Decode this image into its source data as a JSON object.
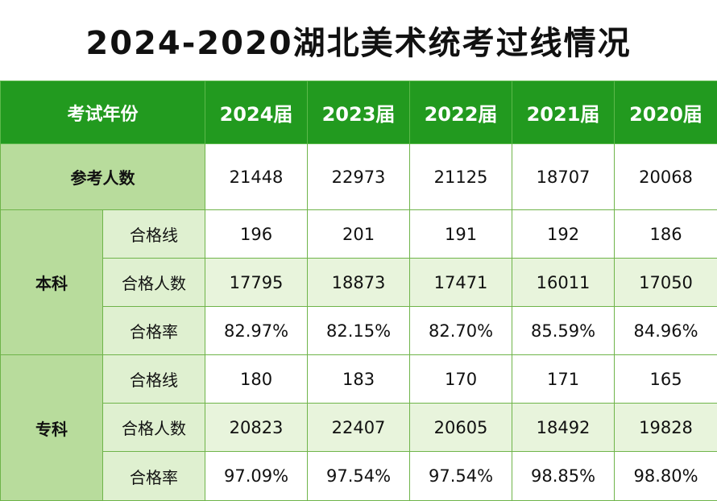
{
  "title": "2024-2020湖北美术统考过线情况",
  "table": {
    "header": {
      "label": "考试年份",
      "years": [
        "2024届",
        "2023届",
        "2022届",
        "2021届",
        "2020届"
      ]
    },
    "participants": {
      "label": "参考人数",
      "values": [
        "21448",
        "22973",
        "21125",
        "18707",
        "20068"
      ]
    },
    "sections": [
      {
        "label": "本科",
        "rows": [
          {
            "label": "合格线",
            "values": [
              "196",
              "201",
              "191",
              "192",
              "186"
            ]
          },
          {
            "label": "合格人数",
            "values": [
              "17795",
              "18873",
              "17471",
              "16011",
              "17050"
            ]
          },
          {
            "label": "合格率",
            "values": [
              "82.97%",
              "82.15%",
              "82.70%",
              "85.59%",
              "84.96%"
            ]
          }
        ]
      },
      {
        "label": "专科",
        "rows": [
          {
            "label": "合格线",
            "values": [
              "180",
              "183",
              "170",
              "171",
              "165"
            ]
          },
          {
            "label": "合格人数",
            "values": [
              "20823",
              "22407",
              "20605",
              "18492",
              "19828"
            ]
          },
          {
            "label": "合格率",
            "values": [
              "97.09%",
              "97.54%",
              "97.54%",
              "98.85%",
              "98.80%"
            ]
          }
        ]
      }
    ]
  },
  "colors": {
    "header_bg": "#229a1f",
    "row_label_bg": "#b8dc9c",
    "sub_label_bg": "#dff0d0",
    "shaded_cell_bg": "#e8f4dc",
    "border": "#6fb44a"
  }
}
